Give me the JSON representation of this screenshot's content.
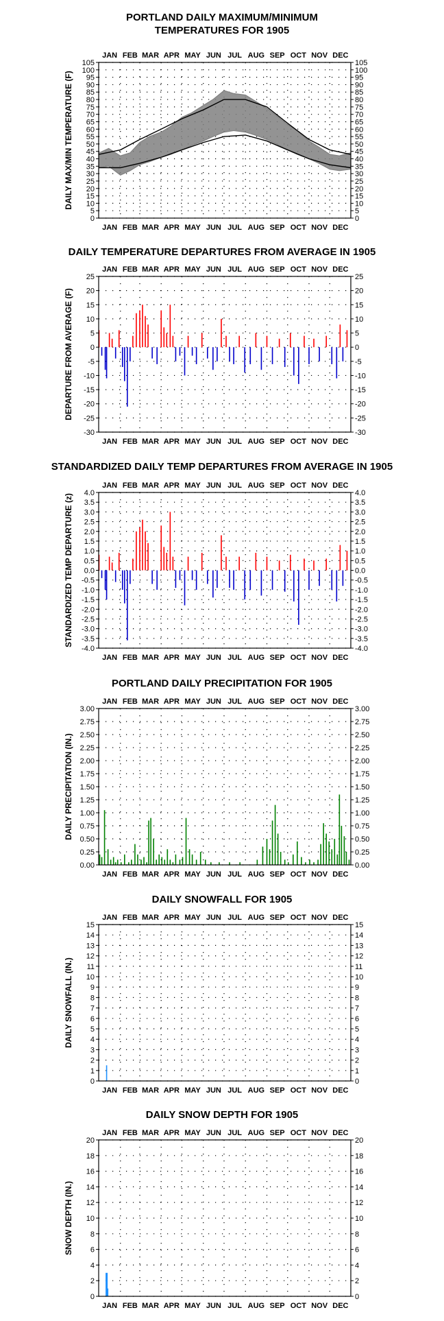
{
  "months": [
    "JAN",
    "FEB",
    "MAR",
    "APR",
    "MAY",
    "JUN",
    "JUL",
    "AUG",
    "SEP",
    "OCT",
    "NOV",
    "DEC"
  ],
  "colors": {
    "temp_obs": "#808080",
    "temp_normal": "#000000",
    "warm": "#ff0000",
    "cold": "#0000cc",
    "precip": "#008000",
    "snow": "#1e90ff"
  },
  "chart_data": [
    {
      "type": "line",
      "title": [
        "PORTLAND DAILY MAXIMUM/MINIMUM",
        "TEMPERATURES FOR 1905"
      ],
      "ylabel": "DAILY MAX/MIN TEMPERATURE (F)",
      "ylim": [
        0,
        105
      ],
      "yticks": [
        0,
        5,
        10,
        15,
        20,
        25,
        30,
        35,
        40,
        45,
        50,
        55,
        60,
        65,
        70,
        75,
        80,
        85,
        90,
        95,
        100,
        105
      ],
      "x": "day of year 1905 (1-365)",
      "series": [
        {
          "role": "observed_max",
          "x": [
            1,
            15,
            32,
            46,
            60,
            74,
            91,
            105,
            121,
            135,
            152,
            166,
            182,
            196,
            213,
            227,
            244,
            258,
            274,
            288,
            305,
            319,
            335,
            349,
            365
          ],
          "values": [
            44,
            47,
            42,
            44,
            51,
            55,
            58,
            62,
            68,
            71,
            76,
            80,
            86,
            84,
            83,
            79,
            74,
            69,
            63,
            59,
            52,
            48,
            43,
            42,
            44
          ]
        },
        {
          "role": "observed_min",
          "x": [
            1,
            15,
            32,
            46,
            60,
            74,
            91,
            105,
            121,
            135,
            152,
            166,
            182,
            196,
            213,
            227,
            244,
            258,
            274,
            288,
            305,
            319,
            335,
            349,
            365
          ],
          "values": [
            34,
            35,
            29,
            32,
            36,
            38,
            41,
            43,
            46,
            49,
            52,
            55,
            58,
            59,
            58,
            56,
            53,
            50,
            46,
            43,
            40,
            37,
            33,
            32,
            33
          ]
        },
        {
          "role": "normal_max",
          "x": [
            1,
            32,
            60,
            91,
            121,
            152,
            182,
            213,
            244,
            274,
            305,
            335,
            365
          ],
          "values": [
            43,
            46,
            53,
            60,
            67,
            73,
            80,
            80,
            75,
            64,
            53,
            46,
            43
          ]
        },
        {
          "role": "normal_min",
          "x": [
            1,
            32,
            60,
            91,
            121,
            152,
            182,
            213,
            244,
            274,
            305,
            335,
            365
          ],
          "values": [
            34,
            34,
            37,
            41,
            46,
            51,
            55,
            56,
            52,
            46,
            40,
            36,
            34
          ]
        }
      ]
    },
    {
      "type": "bar",
      "title": [
        "DAILY TEMPERATURE DEPARTURES FROM AVERAGE IN 1905"
      ],
      "ylabel": "DEPARTURE FROM AVERAGE (F)",
      "ylim": [
        -30,
        25
      ],
      "yticks": [
        -30,
        -25,
        -20,
        -15,
        -10,
        -5,
        0,
        5,
        10,
        15,
        20,
        25
      ],
      "x": [
        1,
        5,
        10,
        12,
        16,
        20,
        25,
        30,
        35,
        38,
        42,
        46,
        50,
        55,
        60,
        64,
        68,
        72,
        78,
        85,
        91,
        95,
        99,
        104,
        108,
        112,
        118,
        125,
        130,
        136,
        142,
        150,
        158,
        166,
        172,
        178,
        185,
        190,
        196,
        204,
        212,
        220,
        228,
        236,
        244,
        252,
        262,
        270,
        278,
        283,
        290,
        298,
        305,
        312,
        320,
        330,
        338,
        345,
        350,
        354,
        360
      ],
      "values": [
        6,
        -3,
        -8,
        -11,
        5,
        3,
        -4,
        6,
        -7,
        -12,
        -21,
        -5,
        4,
        12,
        13,
        15,
        11,
        8,
        -4,
        -6,
        13,
        7,
        5,
        15,
        4,
        -5,
        -3,
        -10,
        4,
        -3,
        -6,
        5,
        -4,
        -8,
        -5,
        10,
        4,
        -5,
        -6,
        4,
        -9,
        -6,
        5,
        -8,
        4,
        -6,
        3,
        -7,
        5,
        -10,
        -13,
        4,
        -6,
        3,
        -5,
        4,
        -6,
        -11,
        8,
        -5,
        6
      ]
    },
    {
      "type": "bar",
      "title": [
        "STANDARDIZED DAILY TEMP DEPARTURES FROM AVERAGE IN 1905"
      ],
      "ylabel": "STANDARDIZED TEMP DEPARTURE (z)",
      "ylim": [
        -4,
        4
      ],
      "yticks": [
        -4.0,
        -3.5,
        -3.0,
        -2.5,
        -2.0,
        -1.5,
        -1.0,
        -0.5,
        0.0,
        0.5,
        1.0,
        1.5,
        2.0,
        2.5,
        3.0,
        3.5,
        4.0
      ],
      "x": [
        1,
        5,
        10,
        12,
        16,
        20,
        25,
        30,
        35,
        38,
        42,
        46,
        50,
        55,
        60,
        64,
        68,
        72,
        78,
        85,
        91,
        95,
        99,
        104,
        108,
        112,
        118,
        125,
        130,
        136,
        142,
        150,
        158,
        166,
        172,
        178,
        185,
        190,
        196,
        204,
        212,
        220,
        228,
        236,
        244,
        252,
        262,
        270,
        278,
        283,
        290,
        298,
        305,
        312,
        320,
        330,
        338,
        345,
        350,
        354,
        360
      ],
      "values": [
        0.8,
        -0.4,
        -1.0,
        -1.5,
        0.7,
        0.4,
        -0.6,
        0.9,
        -1.0,
        -1.7,
        -3.6,
        -0.7,
        0.6,
        2.0,
        2.2,
        2.6,
        2.0,
        1.4,
        -0.7,
        -1.0,
        2.3,
        1.2,
        0.9,
        3.0,
        0.7,
        -0.9,
        -0.5,
        -1.8,
        0.7,
        -0.5,
        -1.0,
        0.9,
        -0.7,
        -1.4,
        -0.9,
        1.8,
        0.7,
        -0.9,
        -1.0,
        0.7,
        -1.5,
        -1.0,
        0.9,
        -1.3,
        0.7,
        -1.0,
        0.5,
        -1.1,
        0.8,
        -1.6,
        -2.8,
        0.6,
        -1.0,
        0.5,
        -0.8,
        0.6,
        -1.0,
        -1.6,
        1.3,
        -0.8,
        1.0
      ]
    },
    {
      "type": "bar",
      "title": [
        "PORTLAND DAILY PRECIPITATION FOR 1905"
      ],
      "ylabel": "DAILY PRECIPITATION (IN.)",
      "ylim": [
        0,
        3.0
      ],
      "yticks": [
        0.0,
        0.25,
        0.5,
        0.75,
        1.0,
        1.25,
        1.5,
        1.75,
        2.0,
        2.25,
        2.5,
        2.75,
        3.0
      ],
      "x": [
        2,
        5,
        9,
        14,
        18,
        22,
        25,
        28,
        33,
        38,
        44,
        48,
        53,
        57,
        62,
        66,
        70,
        73,
        76,
        80,
        84,
        88,
        92,
        96,
        100,
        104,
        108,
        112,
        118,
        122,
        127,
        132,
        136,
        142,
        148,
        155,
        163,
        175,
        190,
        205,
        230,
        238,
        244,
        248,
        252,
        256,
        260,
        264,
        270,
        275,
        282,
        288,
        294,
        300,
        306,
        312,
        318,
        322,
        326,
        330,
        334,
        338,
        342,
        346,
        349,
        352,
        356,
        359,
        363
      ],
      "values": [
        0.2,
        0.15,
        1.05,
        0.3,
        0.1,
        0.15,
        0.05,
        0.1,
        0.05,
        0.2,
        0.05,
        0.1,
        0.4,
        0.2,
        0.1,
        0.15,
        0.05,
        0.85,
        0.9,
        0.5,
        0.1,
        0.2,
        0.15,
        0.1,
        0.3,
        0.1,
        0.05,
        0.2,
        0.1,
        0.15,
        0.9,
        0.3,
        0.2,
        0.1,
        0.25,
        0.1,
        0.05,
        0.05,
        0.05,
        0.05,
        0.1,
        0.35,
        0.5,
        0.3,
        0.85,
        1.15,
        0.6,
        0.25,
        0.1,
        0.05,
        0.2,
        0.45,
        0.15,
        0.05,
        0.1,
        0.05,
        0.1,
        0.4,
        0.8,
        0.6,
        0.45,
        0.3,
        0.5,
        0.2,
        1.35,
        0.75,
        0.55,
        0.25,
        0.1
      ]
    },
    {
      "type": "bar",
      "title": [
        "DAILY SNOWFALL FOR 1905"
      ],
      "ylabel": "DAILY SNOWFALL (IN.)",
      "ylim": [
        0,
        15
      ],
      "yticks": [
        0,
        1,
        2,
        3,
        4,
        5,
        6,
        7,
        8,
        9,
        10,
        11,
        12,
        13,
        14,
        15
      ],
      "x": [
        12
      ],
      "values": [
        1.5
      ]
    },
    {
      "type": "bar",
      "title": [
        "DAILY SNOW DEPTH FOR 1905"
      ],
      "ylabel": "SNOW DEPTH (IN.)",
      "ylim": [
        0,
        20
      ],
      "yticks": [
        0,
        2,
        4,
        6,
        8,
        10,
        12,
        14,
        16,
        18,
        20
      ],
      "x": [
        12,
        13
      ],
      "values": [
        3,
        1
      ]
    }
  ]
}
